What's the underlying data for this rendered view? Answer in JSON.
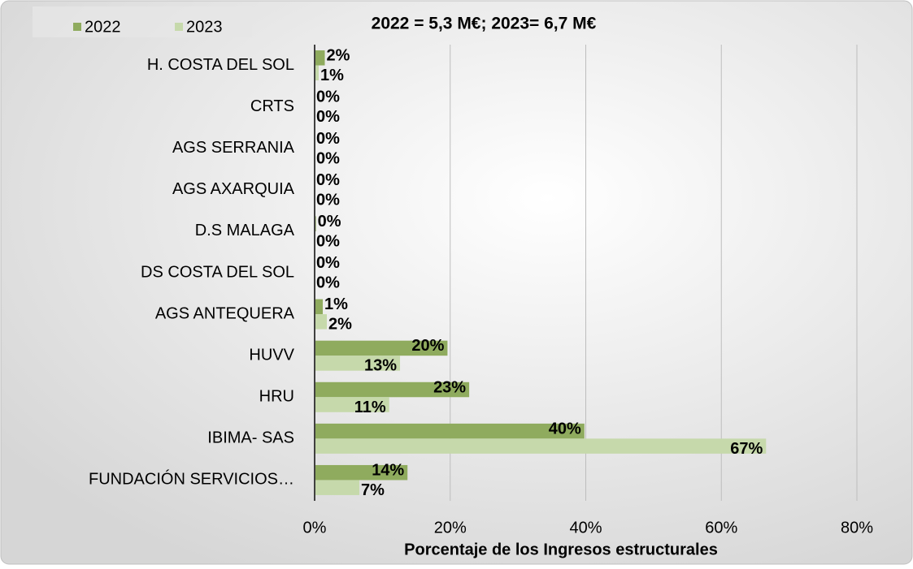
{
  "chart_data": {
    "type": "barh",
    "title": "2022 = 5,3  M€; 2023= 6,7 M€",
    "xlabel": "Porcentaje de los Ingresos estructurales",
    "categories": [
      "H. COSTA DEL SOL",
      "CRTS",
      "AGS SERRANIA",
      "AGS AXARQUIA",
      "D.S MALAGA",
      "DS COSTA DEL SOL",
      "AGS ANTEQUERA",
      "HUVV",
      "HRU",
      "IBIMA- SAS",
      "FUNDACIÓN SERVICIOS…"
    ],
    "series": [
      {
        "name": "2022",
        "color": "#8fab5e",
        "values": [
          1.5,
          0,
          0,
          0,
          0.2,
          0,
          1.2,
          19.6,
          22.8,
          39.8,
          13.7
        ],
        "value_labels": [
          "2%",
          "0%",
          "0%",
          "0%",
          "0%",
          "0%",
          "1%",
          "20%",
          "23%",
          "40%",
          "14%"
        ]
      },
      {
        "name": "2023",
        "color": "#c6d9ab",
        "values": [
          0.6,
          0,
          0,
          0,
          0,
          0,
          1.8,
          12.6,
          11.0,
          66.6,
          6.6
        ],
        "value_labels": [
          "1%",
          "0%",
          "0%",
          "0%",
          "0%",
          "0%",
          "2%",
          "13%",
          "11%",
          "67%",
          "7%"
        ]
      }
    ],
    "xlim": [
      0,
      80
    ],
    "xticks": [
      {
        "value": 0,
        "label": "0%"
      },
      {
        "value": 20,
        "label": "20%"
      },
      {
        "value": 40,
        "label": "40%"
      },
      {
        "value": 60,
        "label": "60%"
      },
      {
        "value": 80,
        "label": "80%"
      }
    ],
    "grid": true,
    "legend": "top-left"
  }
}
